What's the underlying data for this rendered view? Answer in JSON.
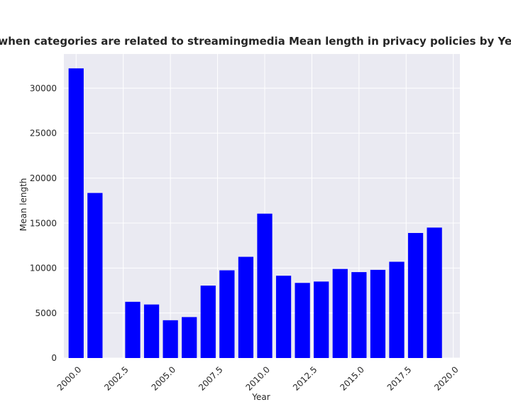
{
  "chart_data": {
    "type": "bar",
    "title": "when categories are related to streamingmedia Mean length in privacy policies by Year",
    "xlabel": "Year",
    "ylabel": "Mean length",
    "x": [
      2000,
      2001,
      2003,
      2004,
      2005,
      2006,
      2007,
      2008,
      2009,
      2010,
      2011,
      2012,
      2013,
      2014,
      2015,
      2016,
      2017,
      2018,
      2019
    ],
    "values": [
      32200,
      18350,
      6250,
      5950,
      4200,
      4550,
      8050,
      9750,
      11250,
      16050,
      9150,
      8350,
      8500,
      9900,
      9550,
      9800,
      10700,
      13900,
      14500
    ],
    "xlim": [
      1999.35,
      2020.35
    ],
    "ylim": [
      0,
      33800
    ],
    "xticks": [
      2000,
      2002.5,
      2005,
      2007.5,
      2010,
      2012.5,
      2015,
      2017.5,
      2020
    ],
    "xtick_labels": [
      "2000.0",
      "2002.5",
      "2005.0",
      "2007.5",
      "2010.0",
      "2012.5",
      "2015.0",
      "2017.5",
      "2020.0"
    ],
    "yticks": [
      0,
      5000,
      10000,
      15000,
      20000,
      25000,
      30000
    ],
    "ytick_labels": [
      "0",
      "5000",
      "10000",
      "15000",
      "20000",
      "25000",
      "30000"
    ],
    "bar_width": 0.8,
    "grid": true,
    "colors": {
      "bar": "#0000ff",
      "plot_background": "#eaeaf2",
      "grid": "#ffffff"
    }
  }
}
